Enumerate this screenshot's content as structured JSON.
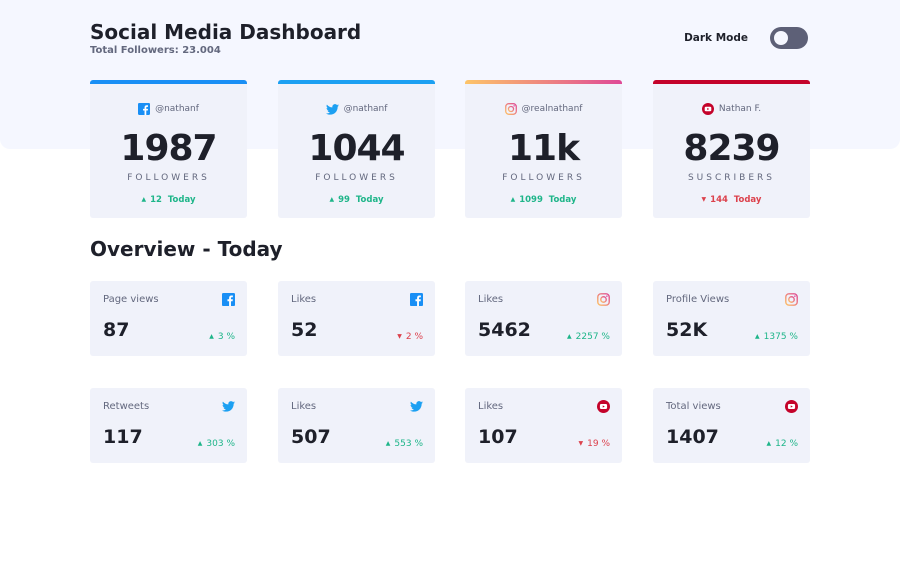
{
  "header": {
    "title": "Social Media Dashboard",
    "total_followers": "Total Followers: 23.004",
    "dark_mode_label": "Dark Mode"
  },
  "colors": {
    "facebook": "#198ff5",
    "twitter": "#1ca0f2",
    "instagram_start": "#fdc468",
    "instagram_end": "#df4996",
    "youtube": "#c4032a",
    "up": "#1eb589",
    "down": "#dc414c"
  },
  "cards": [
    {
      "platform": "facebook",
      "handle": "@nathanf",
      "count": "1987",
      "label": "FOLLOWERS",
      "change": "12",
      "today": "Today",
      "trend": "up"
    },
    {
      "platform": "twitter",
      "handle": "@nathanf",
      "count": "1044",
      "label": "FOLLOWERS",
      "change": "99",
      "today": "Today",
      "trend": "up"
    },
    {
      "platform": "instagram",
      "handle": "@realnathanf",
      "count": "11k",
      "label": "FOLLOWERS",
      "change": "1099",
      "today": "Today",
      "trend": "up"
    },
    {
      "platform": "youtube",
      "handle": "Nathan F.",
      "count": "8239",
      "label": "SUSCRIBERS",
      "change": "144",
      "today": "Today",
      "trend": "down"
    }
  ],
  "overview": {
    "title": "Overview - Today",
    "items": [
      {
        "label": "Page views",
        "platform": "facebook",
        "value": "87",
        "change": "3 %",
        "trend": "up"
      },
      {
        "label": "Likes",
        "platform": "facebook",
        "value": "52",
        "change": "2 %",
        "trend": "down"
      },
      {
        "label": "Likes",
        "platform": "instagram",
        "value": "5462",
        "change": "2257 %",
        "trend": "up"
      },
      {
        "label": "Profile Views",
        "platform": "instagram",
        "value": "52K",
        "change": "1375 %",
        "trend": "up"
      },
      {
        "label": "Retweets",
        "platform": "twitter",
        "value": "117",
        "change": "303 %",
        "trend": "up"
      },
      {
        "label": "Likes",
        "platform": "twitter",
        "value": "507",
        "change": "553 %",
        "trend": "up"
      },
      {
        "label": "Likes",
        "platform": "youtube",
        "value": "107",
        "change": "19 %",
        "trend": "down"
      },
      {
        "label": "Total views",
        "platform": "youtube",
        "value": "1407",
        "change": "12 %",
        "trend": "up"
      }
    ]
  }
}
